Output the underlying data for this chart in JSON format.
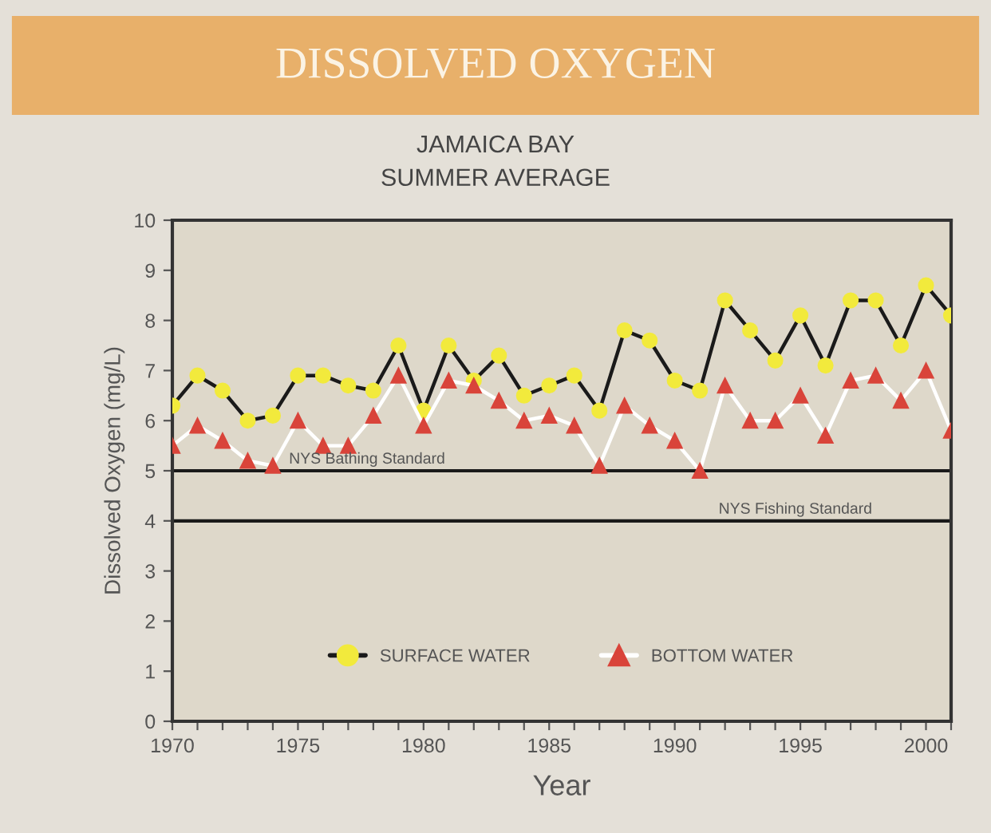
{
  "chart_data": {
    "type": "line",
    "title": "DISSOLVED OXYGEN",
    "subtitle": "JAMAICA BAY\nSUMMER AVERAGE",
    "xlabel": "Year",
    "ylabel": "Dissolved Oxygen (mg/L)",
    "x": [
      1970,
      1971,
      1972,
      1973,
      1974,
      1975,
      1976,
      1977,
      1978,
      1979,
      1980,
      1981,
      1982,
      1983,
      1984,
      1985,
      1986,
      1987,
      1988,
      1989,
      1990,
      1991,
      1992,
      1993,
      1994,
      1995,
      1996,
      1997,
      1998,
      1999,
      2000,
      2001
    ],
    "series": [
      {
        "name": "SURFACE WATER",
        "color": "#f2ea3c",
        "marker": "circle",
        "values": [
          6.3,
          6.9,
          6.6,
          6.0,
          6.1,
          6.9,
          6.9,
          6.7,
          6.6,
          7.5,
          6.2,
          7.5,
          6.8,
          7.3,
          6.5,
          6.7,
          6.9,
          6.2,
          7.8,
          7.6,
          6.8,
          6.6,
          8.4,
          7.8,
          7.2,
          8.1,
          7.1,
          8.4,
          8.4,
          7.5,
          8.7,
          8.1
        ]
      },
      {
        "name": "BOTTOM WATER",
        "color": "#d9443a",
        "marker": "triangle",
        "values": [
          5.5,
          5.9,
          5.6,
          5.2,
          5.1,
          6.0,
          5.5,
          5.5,
          6.1,
          6.9,
          5.9,
          6.8,
          6.7,
          6.4,
          6.0,
          6.1,
          5.9,
          5.1,
          6.3,
          5.9,
          5.6,
          5.0,
          6.7,
          6.0,
          6.0,
          6.5,
          5.7,
          6.8,
          6.9,
          6.4,
          7.0,
          5.8
        ]
      }
    ],
    "xlim": [
      1970,
      2001
    ],
    "xticks": [
      1970,
      {
        "value": 1971,
        "label": null
      },
      {
        "value": 1972,
        "label": null
      },
      {
        "value": 1973,
        "label": null
      },
      {
        "value": 1974,
        "label": null
      },
      1975,
      {
        "value": 1976,
        "label": null
      },
      {
        "value": 1977,
        "label": null
      },
      {
        "value": 1978,
        "label": null
      },
      {
        "value": 1979,
        "label": null
      },
      1980,
      {
        "value": 1981,
        "label": null
      },
      {
        "value": 1982,
        "label": null
      },
      {
        "value": 1983,
        "label": null
      },
      {
        "value": 1984,
        "label": null
      },
      1985,
      {
        "value": 1986,
        "label": null
      },
      {
        "value": 1987,
        "label": null
      },
      {
        "value": 1988,
        "label": null
      },
      {
        "value": 1989,
        "label": null
      },
      1990,
      {
        "value": 1991,
        "label": null
      },
      {
        "value": 1992,
        "label": null
      },
      {
        "value": 1993,
        "label": null
      },
      {
        "value": 1994,
        "label": null
      },
      1995,
      {
        "value": 1996,
        "label": null
      },
      {
        "value": 1997,
        "label": null
      },
      {
        "value": 1998,
        "label": null
      },
      {
        "value": 1999,
        "label": null
      },
      2000,
      {
        "value": 2001,
        "label": null
      }
    ],
    "ylim": [
      0,
      10
    ],
    "yticks": [
      0,
      1,
      2,
      3,
      4,
      5,
      6,
      7,
      8,
      9,
      10
    ],
    "ref_lines": [
      {
        "axis": "y",
        "value": 5,
        "label": "NYS Bathing Standard",
        "color": "#1a1a1a"
      },
      {
        "axis": "y",
        "value": 4,
        "label": "NYS Fishing Standard",
        "color": "#1a1a1a"
      }
    ],
    "grid": false,
    "legend": "bottom"
  }
}
